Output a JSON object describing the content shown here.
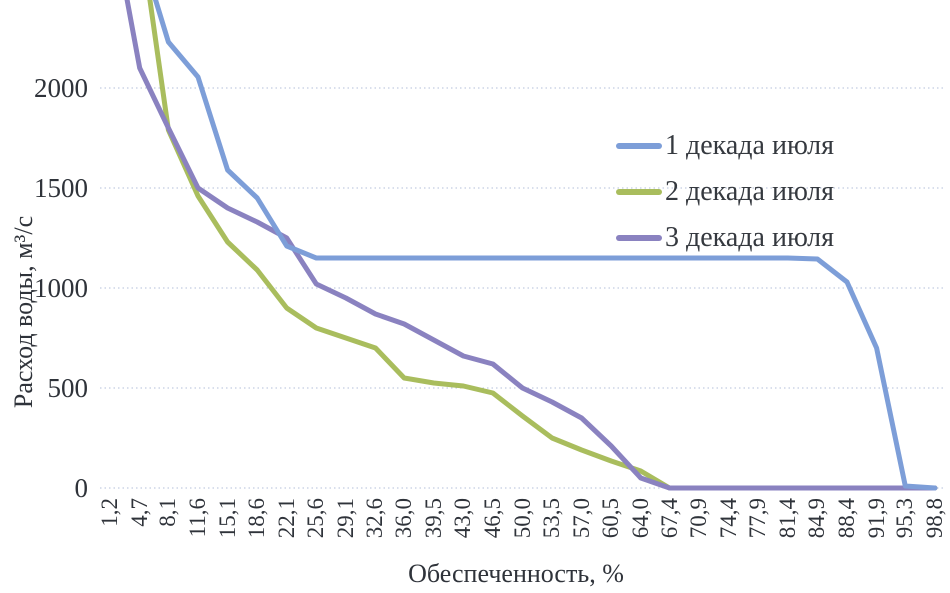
{
  "chart_data": {
    "type": "line",
    "title": "",
    "xlabel": "Обеспеченность, %",
    "ylabel": "Расход воды, м³/с",
    "xlim": [
      0,
      100
    ],
    "ylim": [
      0,
      2440
    ],
    "yticks": [
      0,
      500,
      1000,
      1500,
      2000
    ],
    "ytick_labels": [
      "0",
      "500",
      "1000",
      "1500",
      "2000"
    ],
    "grid": "horizontal dotted gridlines only, no axis lines",
    "legend_position": "inside upper right",
    "x_tick_labels": [
      "1,2",
      "4,7",
      "8,1",
      "11,6",
      "15,1",
      "18,6",
      "22,1",
      "25,6",
      "29,1",
      "32,6",
      "36,0",
      "39,5",
      "43,0",
      "46,5",
      "50,0",
      "53,5",
      "57,0",
      "60,5",
      "64,0",
      "67,4",
      "70,9",
      "74,4",
      "77,9",
      "81,4",
      "84,9",
      "88,4",
      "91,9",
      "95,3",
      "98,8"
    ],
    "x": [
      1.2,
      4.7,
      8.1,
      11.6,
      15.1,
      18.6,
      22.1,
      25.6,
      29.1,
      32.6,
      36.0,
      39.5,
      43.0,
      46.5,
      50.0,
      53.5,
      57.0,
      60.5,
      64.0,
      67.4,
      70.9,
      74.4,
      77.9,
      81.4,
      84.9,
      88.4,
      91.9,
      95.3,
      98.8
    ],
    "series": [
      {
        "name": "1 декада июля",
        "color": "#7d9ed8",
        "values": [
          2900,
          2700,
          2230,
          2055,
          1590,
          1450,
          1210,
          1150,
          1150,
          1150,
          1150,
          1150,
          1150,
          1150,
          1150,
          1150,
          1150,
          1150,
          1150,
          1150,
          1150,
          1150,
          1150,
          1150,
          1145,
          1030,
          700,
          10,
          0
        ]
      },
      {
        "name": "2 декада июля",
        "color": "#a9bd5d",
        "values": [
          2900,
          2800,
          1790,
          1460,
          1230,
          1090,
          900,
          800,
          750,
          700,
          550,
          525,
          510,
          475,
          360,
          250,
          190,
          135,
          85,
          0,
          0,
          0,
          0,
          0,
          0,
          0,
          0,
          0,
          0
        ]
      },
      {
        "name": "3 декада июля",
        "color": "#8a82c0",
        "values": [
          2900,
          2100,
          1800,
          1500,
          1400,
          1330,
          1250,
          1020,
          950,
          870,
          820,
          740,
          660,
          620,
          500,
          430,
          350,
          210,
          50,
          0,
          0,
          0,
          0,
          0,
          0,
          0,
          0,
          0,
          0
        ]
      }
    ]
  },
  "colors": {
    "gridline": "#b3bfd9",
    "tick_text": "#2f333a",
    "legend_text": "#35393f",
    "background": "#ffffff"
  }
}
